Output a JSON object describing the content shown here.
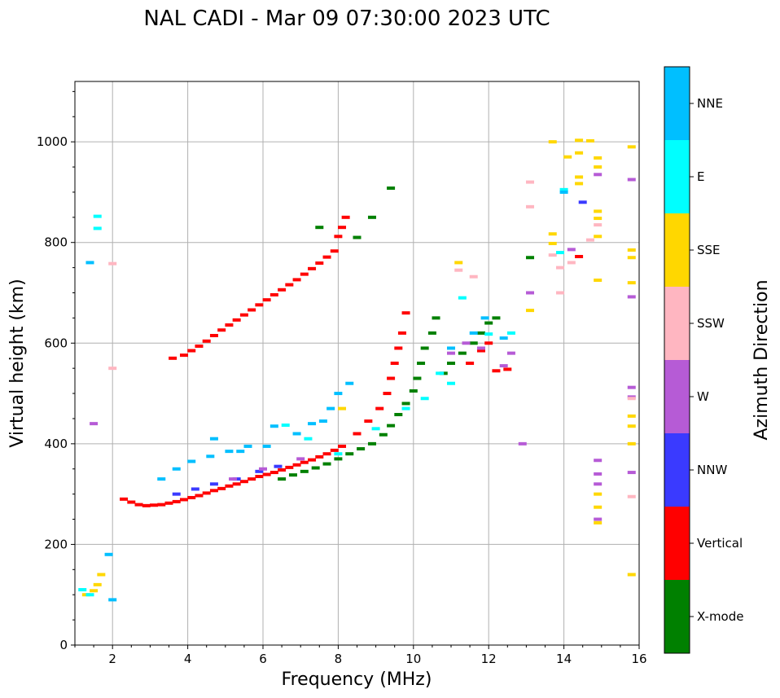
{
  "chart_data": {
    "type": "scatter",
    "title": "NAL CADI - Mar 09 07:30:00 2023 UTC",
    "xlabel": "Frequency (MHz)",
    "ylabel": "Virtual height (km)",
    "xlim": [
      1,
      16
    ],
    "ylim": [
      0,
      1120
    ],
    "xticks": [
      2,
      4,
      6,
      8,
      10,
      12,
      14,
      16
    ],
    "yticks": [
      0,
      200,
      400,
      600,
      800,
      1000
    ],
    "grid": true,
    "colorbar": {
      "label": "Azimuth Direction",
      "categories": [
        {
          "name": "X-mode",
          "color": "#008000"
        },
        {
          "name": "Vertical",
          "color": "#ff0000"
        },
        {
          "name": "NNW",
          "color": "#3a3aff"
        },
        {
          "name": "W",
          "color": "#b65bd6"
        },
        {
          "name": "SSW",
          "color": "#ffb6c1"
        },
        {
          "name": "SSE",
          "color": "#ffd700"
        },
        {
          "name": "E",
          "color": "#00ffff"
        },
        {
          "name": "NNE",
          "color": "#00bfff"
        }
      ]
    },
    "series": [
      {
        "name": "Vertical",
        "color": "#ff0000",
        "points": [
          [
            2.3,
            290
          ],
          [
            2.5,
            284
          ],
          [
            2.7,
            279
          ],
          [
            2.9,
            277
          ],
          [
            3.1,
            278
          ],
          [
            3.3,
            279
          ],
          [
            3.5,
            282
          ],
          [
            3.7,
            285
          ],
          [
            3.9,
            289
          ],
          [
            4.1,
            293
          ],
          [
            4.3,
            297
          ],
          [
            4.5,
            302
          ],
          [
            4.7,
            307
          ],
          [
            4.9,
            311
          ],
          [
            5.1,
            316
          ],
          [
            5.3,
            320
          ],
          [
            5.5,
            325
          ],
          [
            5.7,
            330
          ],
          [
            5.9,
            335
          ],
          [
            6.1,
            339
          ],
          [
            6.3,
            343
          ],
          [
            6.5,
            348
          ],
          [
            6.7,
            353
          ],
          [
            6.9,
            358
          ],
          [
            7.1,
            363
          ],
          [
            7.3,
            368
          ],
          [
            7.5,
            374
          ],
          [
            7.7,
            380
          ],
          [
            7.9,
            387
          ],
          [
            8.1,
            395
          ],
          [
            3.6,
            570
          ],
          [
            3.9,
            576
          ],
          [
            4.1,
            585
          ],
          [
            4.3,
            594
          ],
          [
            4.5,
            604
          ],
          [
            4.7,
            615
          ],
          [
            4.9,
            626
          ],
          [
            5.1,
            636
          ],
          [
            5.3,
            646
          ],
          [
            5.5,
            656
          ],
          [
            5.7,
            666
          ],
          [
            5.9,
            676
          ],
          [
            6.1,
            686
          ],
          [
            6.3,
            696
          ],
          [
            6.5,
            706
          ],
          [
            6.7,
            716
          ],
          [
            6.9,
            726
          ],
          [
            7.1,
            737
          ],
          [
            7.3,
            748
          ],
          [
            7.5,
            759
          ],
          [
            7.7,
            771
          ],
          [
            7.9,
            783
          ],
          [
            8.0,
            812
          ],
          [
            8.1,
            830
          ],
          [
            8.2,
            850
          ],
          [
            8.5,
            420
          ],
          [
            8.8,
            445
          ],
          [
            9.1,
            470
          ],
          [
            9.3,
            500
          ],
          [
            9.4,
            530
          ],
          [
            9.5,
            560
          ],
          [
            9.6,
            590
          ],
          [
            9.7,
            620
          ],
          [
            9.8,
            660
          ],
          [
            11.5,
            560
          ],
          [
            11.8,
            585
          ],
          [
            12.0,
            600
          ],
          [
            12.2,
            545
          ],
          [
            12.5,
            548
          ],
          [
            14.4,
            772
          ]
        ]
      },
      {
        "name": "X-mode",
        "color": "#008000",
        "points": [
          [
            6.5,
            330
          ],
          [
            6.8,
            338
          ],
          [
            7.1,
            345
          ],
          [
            7.4,
            352
          ],
          [
            7.7,
            360
          ],
          [
            8.0,
            370
          ],
          [
            8.3,
            380
          ],
          [
            8.6,
            390
          ],
          [
            8.9,
            400
          ],
          [
            9.2,
            418
          ],
          [
            9.4,
            436
          ],
          [
            9.6,
            458
          ],
          [
            9.8,
            480
          ],
          [
            10.0,
            505
          ],
          [
            10.1,
            530
          ],
          [
            10.2,
            560
          ],
          [
            10.3,
            590
          ],
          [
            10.5,
            620
          ],
          [
            10.6,
            650
          ],
          [
            10.8,
            540
          ],
          [
            11.0,
            560
          ],
          [
            11.3,
            580
          ],
          [
            11.6,
            600
          ],
          [
            11.8,
            620
          ],
          [
            12.0,
            640
          ],
          [
            12.2,
            650
          ],
          [
            9.4,
            908
          ],
          [
            13.1,
            770
          ],
          [
            7.5,
            830
          ],
          [
            8.5,
            810
          ],
          [
            8.9,
            850
          ]
        ]
      },
      {
        "name": "NNW",
        "color": "#3a3aff",
        "points": [
          [
            3.7,
            300
          ],
          [
            4.2,
            310
          ],
          [
            4.7,
            320
          ],
          [
            5.3,
            330
          ],
          [
            5.9,
            345
          ],
          [
            6.4,
            355
          ],
          [
            14.5,
            880
          ]
        ]
      },
      {
        "name": "W",
        "color": "#b65bd6",
        "points": [
          [
            1.5,
            440
          ],
          [
            5.2,
            330
          ],
          [
            6.0,
            350
          ],
          [
            7.0,
            370
          ],
          [
            11.0,
            580
          ],
          [
            11.4,
            600
          ],
          [
            11.8,
            590
          ],
          [
            12.4,
            555
          ],
          [
            12.6,
            580
          ],
          [
            12.9,
            400
          ],
          [
            13.1,
            700
          ],
          [
            14.2,
            786
          ],
          [
            14.9,
            367
          ],
          [
            14.9,
            340
          ],
          [
            14.9,
            320
          ],
          [
            14.9,
            250
          ],
          [
            14.9,
            935
          ],
          [
            15.8,
            925
          ],
          [
            15.8,
            692
          ],
          [
            15.8,
            512
          ],
          [
            15.8,
            493
          ],
          [
            15.8,
            343
          ]
        ]
      },
      {
        "name": "SSW",
        "color": "#ffb6c1",
        "points": [
          [
            2.0,
            758
          ],
          [
            2.0,
            550
          ],
          [
            11.2,
            745
          ],
          [
            11.6,
            732
          ],
          [
            13.1,
            920
          ],
          [
            13.1,
            871
          ],
          [
            13.7,
            775
          ],
          [
            13.9,
            750
          ],
          [
            13.9,
            700
          ],
          [
            14.2,
            760
          ],
          [
            14.7,
            805
          ],
          [
            14.9,
            835
          ],
          [
            15.8,
            490
          ],
          [
            15.8,
            295
          ]
        ]
      },
      {
        "name": "SSE",
        "color": "#ffd700",
        "points": [
          [
            1.3,
            100
          ],
          [
            1.5,
            108
          ],
          [
            1.6,
            120
          ],
          [
            1.7,
            140
          ],
          [
            8.1,
            470
          ],
          [
            11.2,
            760
          ],
          [
            13.1,
            665
          ],
          [
            13.7,
            1000
          ],
          [
            13.7,
            817
          ],
          [
            13.7,
            798
          ],
          [
            14.1,
            970
          ],
          [
            14.4,
            978
          ],
          [
            14.4,
            1003
          ],
          [
            14.7,
            1002
          ],
          [
            14.4,
            930
          ],
          [
            14.4,
            917
          ],
          [
            14.9,
            968
          ],
          [
            14.9,
            950
          ],
          [
            14.9,
            862
          ],
          [
            14.9,
            848
          ],
          [
            14.9,
            812
          ],
          [
            14.9,
            725
          ],
          [
            14.9,
            300
          ],
          [
            14.9,
            274
          ],
          [
            14.9,
            243
          ],
          [
            15.8,
            990
          ],
          [
            15.8,
            785
          ],
          [
            15.8,
            770
          ],
          [
            15.8,
            720
          ],
          [
            15.8,
            455
          ],
          [
            15.8,
            435
          ],
          [
            15.8,
            400
          ],
          [
            15.8,
            140
          ]
        ]
      },
      {
        "name": "E",
        "color": "#00ffff",
        "points": [
          [
            1.2,
            110
          ],
          [
            1.4,
            100
          ],
          [
            1.6,
            828
          ],
          [
            1.6,
            852
          ],
          [
            6.6,
            437
          ],
          [
            7.2,
            410
          ],
          [
            8.0,
            380
          ],
          [
            9.0,
            430
          ],
          [
            9.8,
            470
          ],
          [
            10.3,
            490
          ],
          [
            10.7,
            540
          ],
          [
            11.0,
            520
          ],
          [
            11.3,
            690
          ],
          [
            12.0,
            618
          ],
          [
            12.6,
            620
          ],
          [
            14.0,
            905
          ],
          [
            13.9,
            780
          ]
        ]
      },
      {
        "name": "NNE",
        "color": "#00bfff",
        "points": [
          [
            3.3,
            330
          ],
          [
            3.7,
            350
          ],
          [
            4.1,
            365
          ],
          [
            4.6,
            375
          ],
          [
            5.1,
            385
          ],
          [
            5.6,
            395
          ],
          [
            6.1,
            395
          ],
          [
            4.7,
            410
          ],
          [
            5.4,
            385
          ],
          [
            6.3,
            435
          ],
          [
            6.9,
            420
          ],
          [
            7.3,
            440
          ],
          [
            7.6,
            445
          ],
          [
            7.8,
            470
          ],
          [
            8.0,
            500
          ],
          [
            8.3,
            520
          ],
          [
            1.9,
            180
          ],
          [
            2.0,
            90
          ],
          [
            1.4,
            760
          ],
          [
            11.0,
            590
          ],
          [
            11.6,
            620
          ],
          [
            11.9,
            650
          ],
          [
            12.4,
            610
          ],
          [
            14.0,
            900
          ]
        ]
      }
    ]
  }
}
